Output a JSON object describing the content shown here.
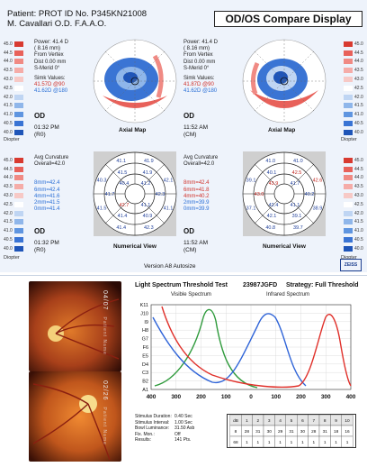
{
  "header": {
    "patient_line": "Patient: PROT   ID No. P345KN21008",
    "doctor_line": "M. Cavallari O.D. F.A.A.O.",
    "title": "OD/OS Compare Display"
  },
  "scale": {
    "values": [
      "45.0",
      "44.5",
      "44.0",
      "43.5",
      "43.0",
      "42.5",
      "42.0",
      "41.5",
      "41.0",
      "40.5",
      "40.0"
    ],
    "colors": [
      "#d83a30",
      "#e8615a",
      "#f08a84",
      "#f5aca8",
      "#f7c9c6",
      "#ffffff",
      "#bfd5f3",
      "#8fb6ea",
      "#5f95e0",
      "#3a74d4",
      "#1f55b8"
    ],
    "unit": "Diopter"
  },
  "left_axial": {
    "power": "Power:  41.4 D",
    "power_mm": "( 8.16 mm)",
    "from_vertex": "From Vertex",
    "dist": "Dist    0.00 mm",
    "smerid": "S-Merid   0°",
    "simk_label": "Simk Values:",
    "simk_red": "41.57D @90",
    "simk_blue": "41.62D @180",
    "eye": "OD",
    "time": "01:32 PM",
    "operator": "(R0)",
    "caption": "Axial Map"
  },
  "right_axial": {
    "power": "Power:  41.4 D",
    "power_mm": "( 8.16 mm)",
    "from_vertex": "From Vertex",
    "dist": "Dist    0.00 mm",
    "smerid": "S-Merid   0°",
    "simk_label": "Simk Values:",
    "simk_red": "41.87D @90",
    "simk_blue": "41.62D @180",
    "eye": "OD",
    "time": "11:52 AM",
    "operator": "(CM)",
    "caption": "Axial Map"
  },
  "left_numeric": {
    "avg": "Avg Curvature",
    "overall": "Overall=42.0",
    "r8": "8mm=42.4",
    "r6": "6mm=42.4",
    "r4": "4mm=41.6",
    "r2": "2mm=41.5",
    "r0": "0mm=41.4",
    "eye": "OD",
    "time": "01:32 PM",
    "operator": "(R0)",
    "caption": "Numerical View",
    "ring_values": [
      "41.9",
      "42.1",
      "41.1",
      "42.3",
      "41.4",
      "41.5",
      "40.3",
      "41.1",
      "41.9",
      "42.3",
      "40.9",
      "41.4",
      "41.7",
      "41.5",
      "41.2",
      "41.1",
      "42.7",
      "40.4"
    ]
  },
  "right_numeric": {
    "avg": "Avg Curvature",
    "overall": "Overall=42.0",
    "r8": "8mm=42.4",
    "r6": "6mm=41.8",
    "r4": "4mm=40.2",
    "r2": "2mm=39.9",
    "r0": "0mm=39.9",
    "eye": "OD",
    "time": "11:52 AM",
    "operator": "(CM)",
    "caption": "Numerical View",
    "ring_values": [
      "41.0",
      "42.6",
      "38.9",
      "39.7",
      "40.8",
      "37.1",
      "39.1",
      "41.0",
      "42.5",
      "40.2",
      "39.1",
      "42.1",
      "43.0",
      "40.1",
      "41.7",
      "41.1",
      "42.4",
      "43.9"
    ]
  },
  "version": "Version A8 Autosize",
  "brand": "ZEISS",
  "fundus": {
    "top_label": "04/07",
    "top_sub": "Patient Name",
    "bottom_label": "02/26",
    "bottom_sub": "Patient Name"
  },
  "spectrum": {
    "title": "Light Spectrum Threshold Test",
    "id": "23987JGFD",
    "strategy": "Strategy: Full Threshold",
    "visible": "Visible Spectrum",
    "infrared": "Infrared Spectrum",
    "y_labels": [
      "K11",
      "J10",
      "I9",
      "H8",
      "G7",
      "F6",
      "E5",
      "D4",
      "C3",
      "B2",
      "A1"
    ],
    "x_labels": [
      "400",
      "300",
      "200",
      "100",
      "0",
      "100",
      "200",
      "300",
      "400"
    ],
    "curve_colors": {
      "red": "#e0302a",
      "green": "#2e9a3b",
      "blue": "#2f64d8"
    }
  },
  "params": {
    "duration_k": "Stimulus Duration:",
    "duration_v": "0.40 Sec",
    "interval_k": "Stimulus Interval:",
    "interval_v": "1.00 Sec",
    "bowl_k": "Bowl Luminance:",
    "bowl_v": "31.50 Asb",
    "fix_k": "Fix. Mon.:",
    "fix_v": "Off",
    "results_k": "Results:",
    "results_v": "141 Pts."
  },
  "grid_table": {
    "rows": [
      [
        "dB",
        "1",
        "2",
        "3",
        "4",
        "5",
        "6",
        "7",
        "8",
        "9",
        "10"
      ],
      [
        "8",
        "28",
        "31",
        "30",
        "29",
        "31",
        "30",
        "28",
        "31",
        "18",
        "16"
      ],
      [
        "68",
        "1",
        "1",
        "1",
        "1",
        "1",
        "1",
        "1",
        "1",
        "1",
        "1"
      ]
    ]
  }
}
